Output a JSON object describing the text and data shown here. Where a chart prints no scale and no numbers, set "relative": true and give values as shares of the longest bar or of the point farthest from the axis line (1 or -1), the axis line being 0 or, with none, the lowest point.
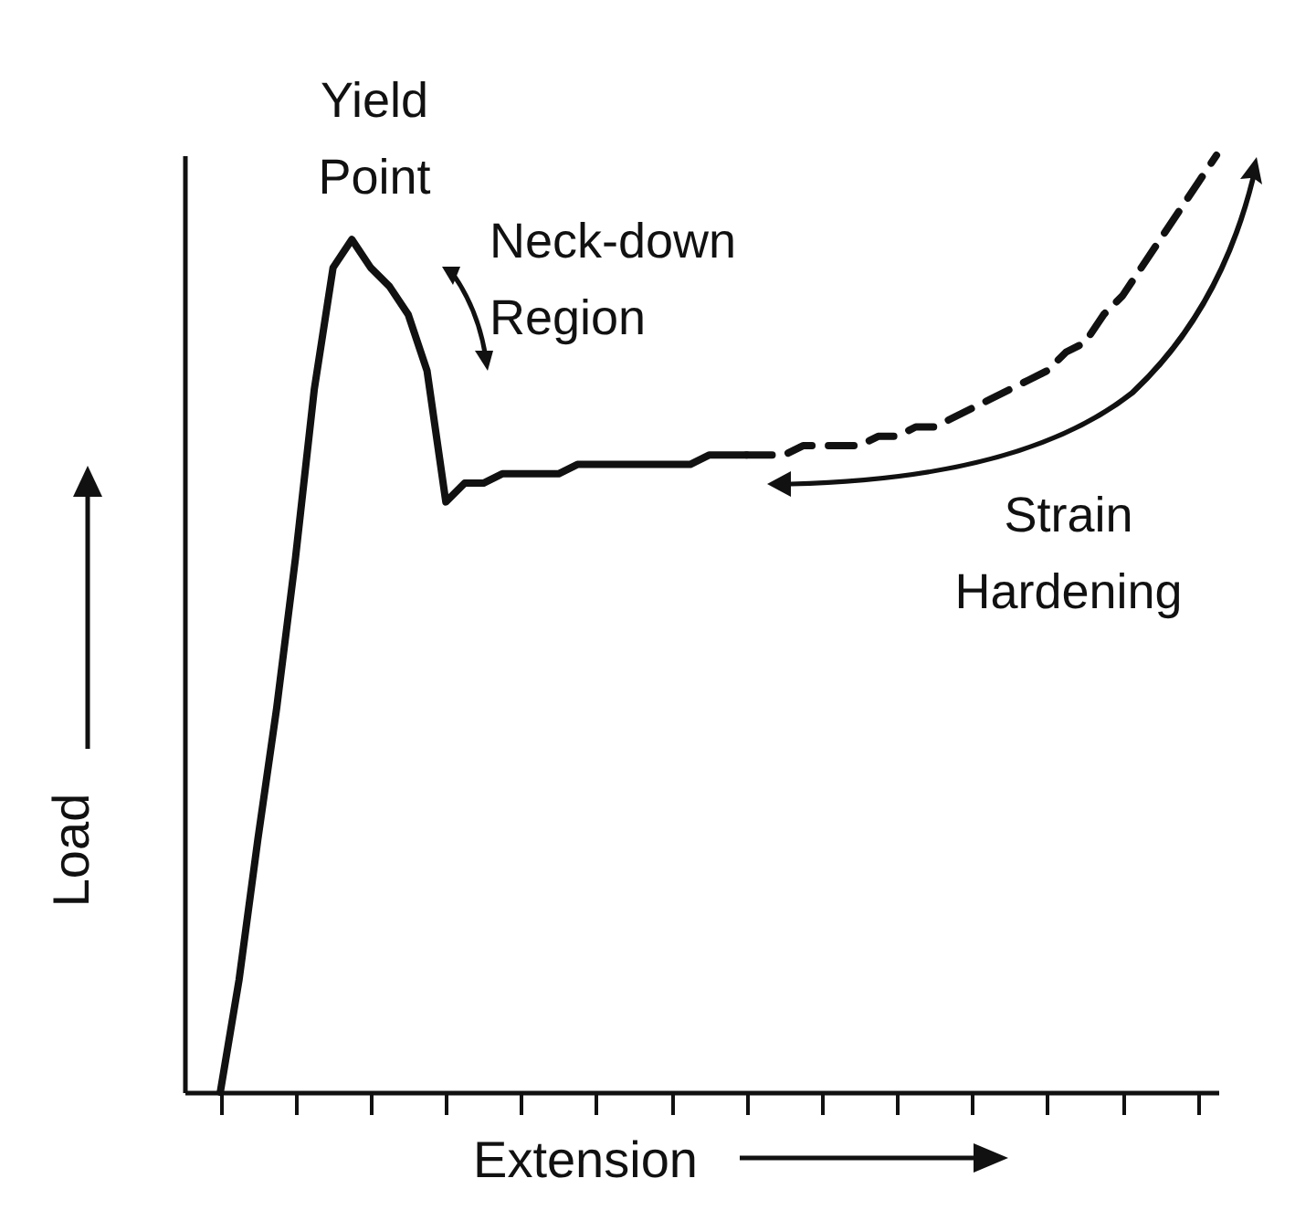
{
  "chart_data": {
    "type": "line",
    "relative": true,
    "xlabel": "Extension",
    "ylabel": "Load",
    "categories": [
      null,
      null,
      null,
      null,
      null,
      null,
      null,
      null,
      null,
      null,
      null,
      null,
      null,
      null,
      null,
      null,
      null,
      null,
      null,
      null,
      null,
      null,
      null,
      null,
      null,
      null,
      null,
      null,
      null,
      null,
      null,
      null,
      null,
      null,
      null,
      null,
      null,
      null,
      null,
      null,
      null,
      null,
      null,
      null,
      null,
      null,
      null,
      null,
      null,
      null,
      null,
      null,
      null,
      null
    ],
    "series": [
      {
        "color": "#111111",
        "line_style": "solid",
        "values": [
          0,
          0.12,
          0.27,
          0.41,
          0.57,
          0.75,
          0.88,
          0.91,
          0.88,
          0.86,
          0.83,
          0.77,
          0.63,
          0.65,
          0.65,
          0.66,
          0.66,
          0.66,
          0.66,
          0.67,
          0.67,
          0.67,
          0.67,
          0.67,
          0.67,
          0.67,
          0.68,
          0.68,
          0.68,
          null,
          null,
          null,
          null,
          null,
          null,
          null,
          null,
          null,
          null,
          null,
          null,
          null,
          null,
          null,
          null,
          null,
          null,
          null,
          null,
          null,
          null,
          null,
          null,
          null
        ]
      },
      {
        "color": "#111111",
        "line_style": "dashed",
        "values": [
          null,
          null,
          null,
          null,
          null,
          null,
          null,
          null,
          null,
          null,
          null,
          null,
          null,
          null,
          null,
          null,
          null,
          null,
          null,
          null,
          null,
          null,
          null,
          null,
          null,
          null,
          null,
          null,
          0.68,
          0.68,
          0.68,
          0.69,
          0.69,
          0.69,
          0.69,
          0.7,
          0.7,
          0.71,
          0.71,
          0.72,
          0.73,
          0.74,
          0.75,
          0.76,
          0.77,
          0.79,
          0.8,
          0.83,
          0.85,
          0.88,
          0.91,
          0.94,
          0.97,
          1.0
        ]
      }
    ],
    "annotations": [
      "Yield Point",
      "Neck-down Region",
      "Strain Hardening"
    ]
  }
}
